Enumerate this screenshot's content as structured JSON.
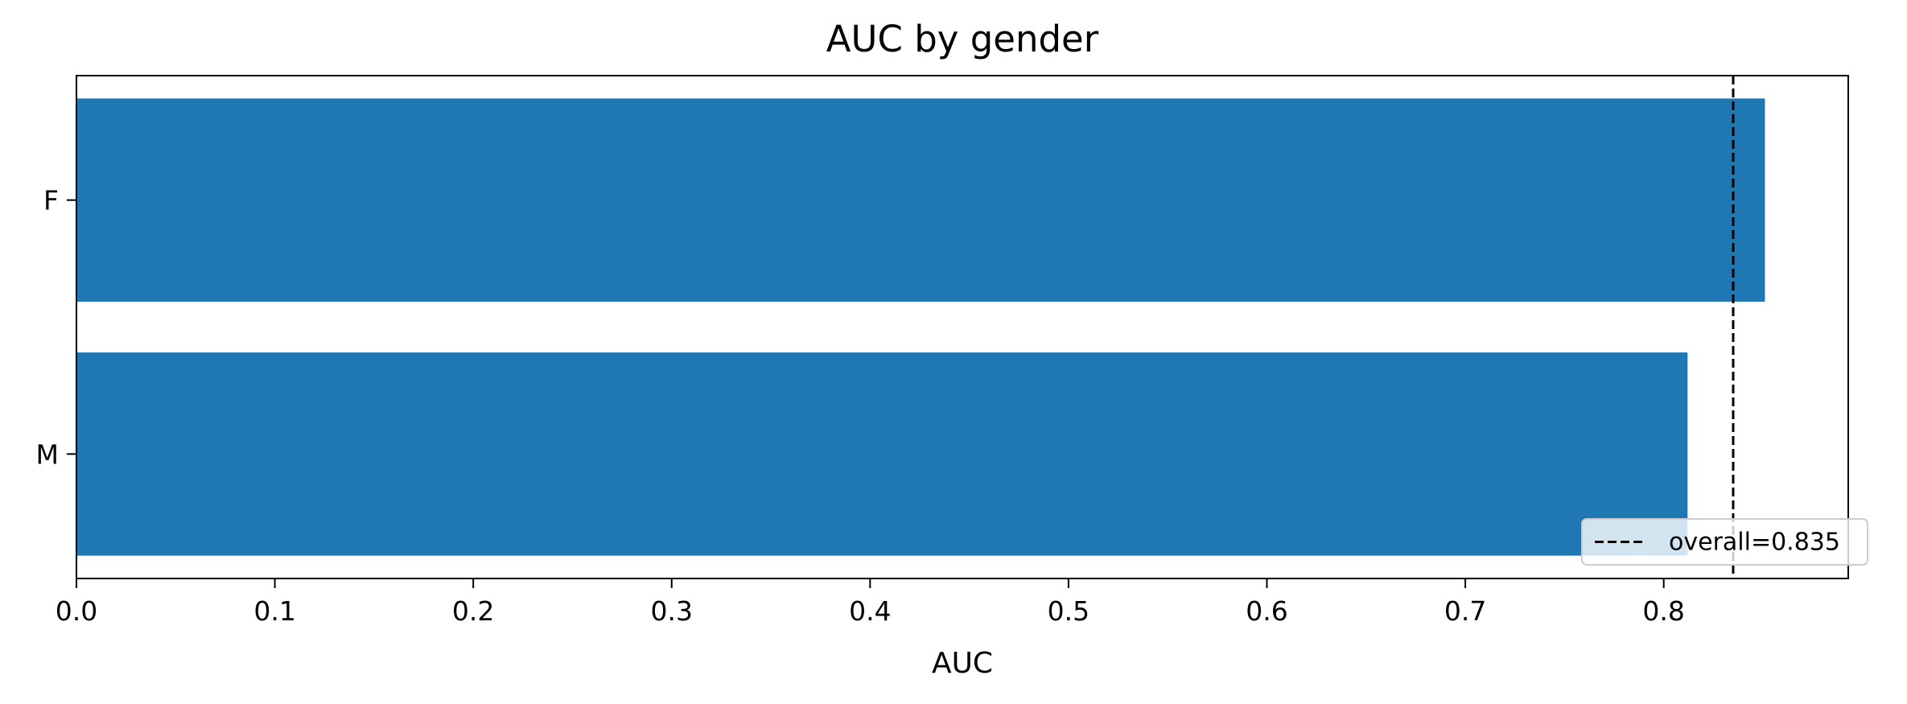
{
  "chart_data": {
    "type": "bar",
    "orientation": "horizontal",
    "title": "AUC by gender",
    "xlabel": "AUC",
    "ylabel": "",
    "categories": [
      "F",
      "M"
    ],
    "values": [
      0.851,
      0.812
    ],
    "xlim": [
      0,
      0.893
    ],
    "xticks": [
      0.0,
      0.1,
      0.2,
      0.3,
      0.4,
      0.5,
      0.6,
      0.7,
      0.8
    ],
    "xtick_labels": [
      "0.0",
      "0.1",
      "0.2",
      "0.3",
      "0.4",
      "0.5",
      "0.6",
      "0.7",
      "0.8"
    ],
    "bar_color": "#1f77b4",
    "grid": false,
    "reference_line": {
      "value": 0.835,
      "style": "dashed",
      "color": "#000000",
      "label": "overall=0.835"
    },
    "legend": {
      "placement": "lower-right",
      "entries": [
        "overall=0.835"
      ]
    }
  }
}
